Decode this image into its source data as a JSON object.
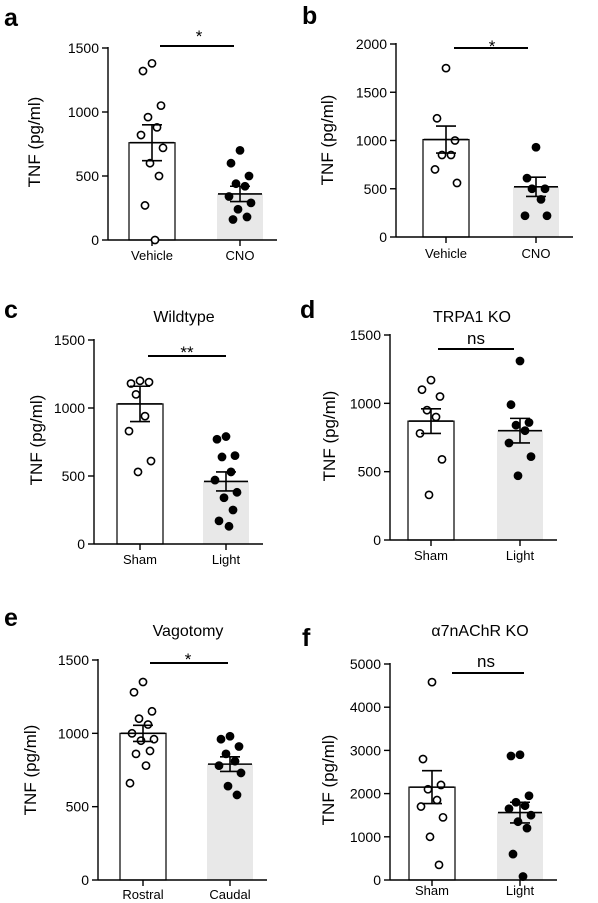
{
  "chart_data": [
    {
      "panel": "a",
      "type": "bar",
      "title": "",
      "ylabel": "TNF (pg/ml)",
      "ylim": [
        0,
        1500
      ],
      "yticks": [
        0,
        500,
        1000,
        1500
      ],
      "categories": [
        "Vehicle",
        "CNO"
      ],
      "bar_colors": [
        "#ffffff",
        "#e8e8e8"
      ],
      "series": [
        {
          "category": "Vehicle",
          "mean": 760,
          "sem": 140,
          "filled": false,
          "points": [
            1380,
            1320,
            1050,
            960,
            880,
            820,
            720,
            600,
            500,
            270,
            0
          ]
        },
        {
          "category": "CNO",
          "mean": 360,
          "sem": 60,
          "filled": true,
          "points": [
            700,
            600,
            500,
            440,
            420,
            340,
            290,
            240,
            180,
            160
          ]
        }
      ],
      "significance": "*"
    },
    {
      "panel": "b",
      "type": "bar",
      "title": "",
      "ylabel": "TNF (pg/ml)",
      "ylim": [
        0,
        2000
      ],
      "yticks": [
        0,
        500,
        1000,
        1500,
        2000
      ],
      "categories": [
        "Vehicle",
        "CNO"
      ],
      "bar_colors": [
        "#ffffff",
        "#e8e8e8"
      ],
      "series": [
        {
          "category": "Vehicle",
          "mean": 1010,
          "sem": 140,
          "filled": false,
          "points": [
            1750,
            1230,
            1000,
            850,
            850,
            700,
            560
          ]
        },
        {
          "category": "CNO",
          "mean": 520,
          "sem": 100,
          "filled": true,
          "points": [
            930,
            610,
            500,
            500,
            390,
            220,
            220
          ]
        }
      ],
      "significance": "*"
    },
    {
      "panel": "c",
      "type": "bar",
      "title": "Wildtype",
      "ylabel": "TNF (pg/ml)",
      "ylim": [
        0,
        1500
      ],
      "yticks": [
        0,
        500,
        1000,
        1500
      ],
      "categories": [
        "Sham",
        "Light"
      ],
      "bar_colors": [
        "#ffffff",
        "#e8e8e8"
      ],
      "series": [
        {
          "category": "Sham",
          "mean": 1030,
          "sem": 130,
          "filled": false,
          "points": [
            1200,
            1180,
            1190,
            1100,
            940,
            830,
            610,
            530
          ]
        },
        {
          "category": "Light",
          "mean": 460,
          "sem": 70,
          "filled": true,
          "points": [
            790,
            770,
            650,
            640,
            530,
            470,
            380,
            340,
            250,
            170,
            130
          ]
        }
      ],
      "significance": "**"
    },
    {
      "panel": "d",
      "type": "bar",
      "title": "TRPA1 KO",
      "ylabel": "TNF (pg/ml)",
      "ylim": [
        0,
        1500
      ],
      "yticks": [
        0,
        500,
        1000,
        1500
      ],
      "categories": [
        "Sham",
        "Light"
      ],
      "bar_colors": [
        "#ffffff",
        "#e8e8e8"
      ],
      "series": [
        {
          "category": "Sham",
          "mean": 870,
          "sem": 90,
          "filled": false,
          "points": [
            1170,
            1100,
            1050,
            950,
            900,
            780,
            590,
            330
          ]
        },
        {
          "category": "Light",
          "mean": 800,
          "sem": 90,
          "filled": true,
          "points": [
            1310,
            990,
            860,
            840,
            800,
            710,
            610,
            470
          ]
        }
      ],
      "significance": "ns"
    },
    {
      "panel": "e",
      "type": "bar",
      "title": "Vagotomy",
      "ylabel": "TNF (pg/ml)",
      "ylim": [
        0,
        1500
      ],
      "yticks": [
        0,
        500,
        1000,
        1500
      ],
      "categories": [
        "Rostral",
        "Caudal"
      ],
      "bar_colors": [
        "#ffffff",
        "#e8e8e8"
      ],
      "series": [
        {
          "category": "Rostral",
          "mean": 1000,
          "sem": 55,
          "filled": false,
          "points": [
            1350,
            1280,
            1150,
            1100,
            1060,
            1000,
            960,
            950,
            880,
            860,
            780,
            660
          ]
        },
        {
          "category": "Caudal",
          "mean": 790,
          "sem": 50,
          "filled": true,
          "points": [
            980,
            960,
            910,
            860,
            810,
            780,
            730,
            640,
            580
          ]
        }
      ],
      "significance": "*"
    },
    {
      "panel": "f",
      "type": "bar",
      "title": "α7nAChR KO",
      "ylabel": "TNF (pg/ml)",
      "ylim": [
        0,
        5000
      ],
      "yticks": [
        0,
        1000,
        2000,
        3000,
        4000,
        5000
      ],
      "categories": [
        "Sham",
        "Light"
      ],
      "bar_colors": [
        "#ffffff",
        "#e8e8e8"
      ],
      "series": [
        {
          "category": "Sham",
          "mean": 2150,
          "sem": 380,
          "filled": false,
          "points": [
            4580,
            2800,
            2200,
            2100,
            1850,
            1700,
            1450,
            1000,
            350
          ]
        },
        {
          "category": "Light",
          "mean": 1560,
          "sem": 240,
          "filled": true,
          "points": [
            2900,
            2870,
            1950,
            1800,
            1720,
            1650,
            1500,
            1350,
            1200,
            600,
            80
          ]
        }
      ],
      "significance": "ns"
    }
  ]
}
